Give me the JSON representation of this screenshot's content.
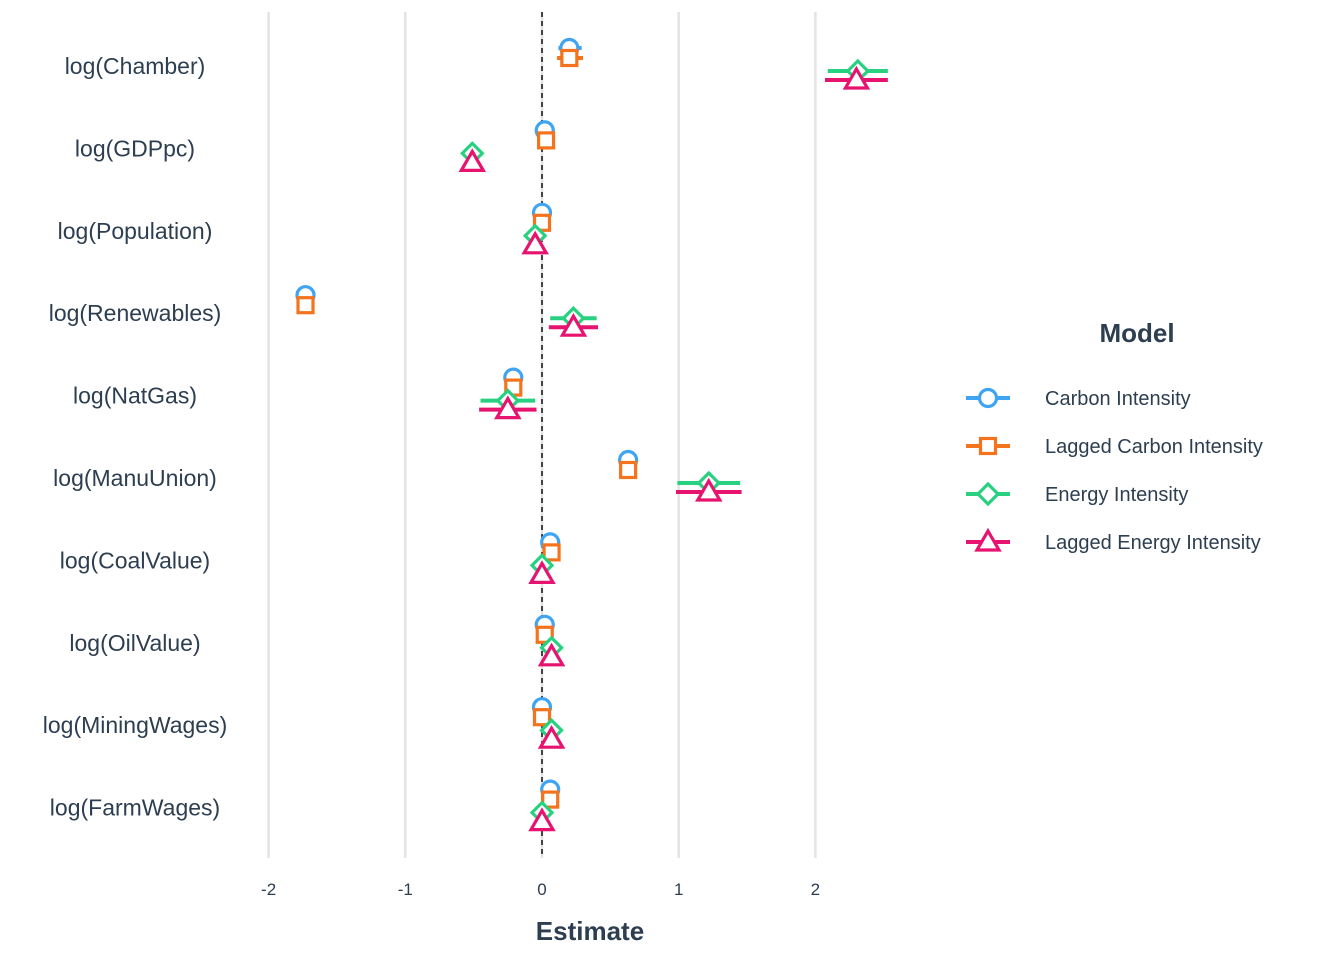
{
  "chart_data": {
    "type": "scatter",
    "subtype": "coefficient-plot",
    "xlabel": "Estimate",
    "xlim": [
      -2.0,
      2.55
    ],
    "x_ticks": [
      -2,
      -1,
      0,
      1,
      2
    ],
    "x_tick_labels": [
      "-2",
      "-1",
      "0",
      "1",
      "2"
    ],
    "reference_line": 0,
    "grid": "vertical",
    "categories": [
      "log(Chamber)",
      "log(GDPpc)",
      "log(Population)",
      "log(Renewables)",
      "log(NatGas)",
      "log(ManuUnion)",
      "log(CoalValue)",
      "log(OilValue)",
      "log(MiningWages)",
      "log(FarmWages)"
    ],
    "legend": {
      "title": "Model",
      "position": "right"
    },
    "series": [
      {
        "name": "Carbon Intensity",
        "color": "#3fa4f2",
        "marker": "circle",
        "estimates": [
          0.2,
          0.02,
          0.0,
          -1.73,
          -0.21,
          0.63,
          0.06,
          0.02,
          0.0,
          0.06
        ],
        "ci_low": [
          0.12,
          0.0,
          -0.01,
          -1.77,
          -0.26,
          0.58,
          0.04,
          0.0,
          -0.01,
          0.04
        ],
        "ci_high": [
          0.29,
          0.04,
          0.01,
          -1.69,
          -0.16,
          0.68,
          0.08,
          0.04,
          0.01,
          0.08
        ]
      },
      {
        "name": "Lagged Carbon Intensity",
        "color": "#f5731c",
        "marker": "square",
        "estimates": [
          0.2,
          0.03,
          0.0,
          -1.73,
          -0.21,
          0.63,
          0.07,
          0.02,
          0.0,
          0.06
        ],
        "ci_low": [
          0.11,
          0.01,
          -0.01,
          -1.77,
          -0.26,
          0.57,
          0.05,
          0.0,
          -0.01,
          0.04
        ],
        "ci_high": [
          0.3,
          0.05,
          0.01,
          -1.68,
          -0.16,
          0.69,
          0.09,
          0.04,
          0.01,
          0.08
        ]
      },
      {
        "name": "Energy Intensity",
        "color": "#27d17f",
        "marker": "diamond",
        "estimates": [
          2.31,
          -0.51,
          -0.05,
          0.23,
          -0.25,
          1.22,
          0.0,
          0.07,
          0.07,
          0.0
        ],
        "ci_low": [
          2.09,
          -0.54,
          -0.08,
          0.06,
          -0.45,
          0.99,
          -0.03,
          0.04,
          0.04,
          -0.03
        ],
        "ci_high": [
          2.53,
          -0.48,
          -0.02,
          0.4,
          -0.05,
          1.45,
          0.03,
          0.1,
          0.1,
          0.03
        ]
      },
      {
        "name": "Lagged Energy Intensity",
        "color": "#e6136f",
        "marker": "triangle",
        "estimates": [
          2.3,
          -0.51,
          -0.05,
          0.23,
          -0.25,
          1.22,
          0.0,
          0.07,
          0.07,
          0.0
        ],
        "ci_low": [
          2.07,
          -0.54,
          -0.08,
          0.05,
          -0.46,
          0.98,
          -0.03,
          0.04,
          0.04,
          -0.03
        ],
        "ci_high": [
          2.53,
          -0.48,
          -0.02,
          0.41,
          -0.04,
          1.46,
          0.03,
          0.1,
          0.1,
          0.03
        ]
      }
    ]
  }
}
